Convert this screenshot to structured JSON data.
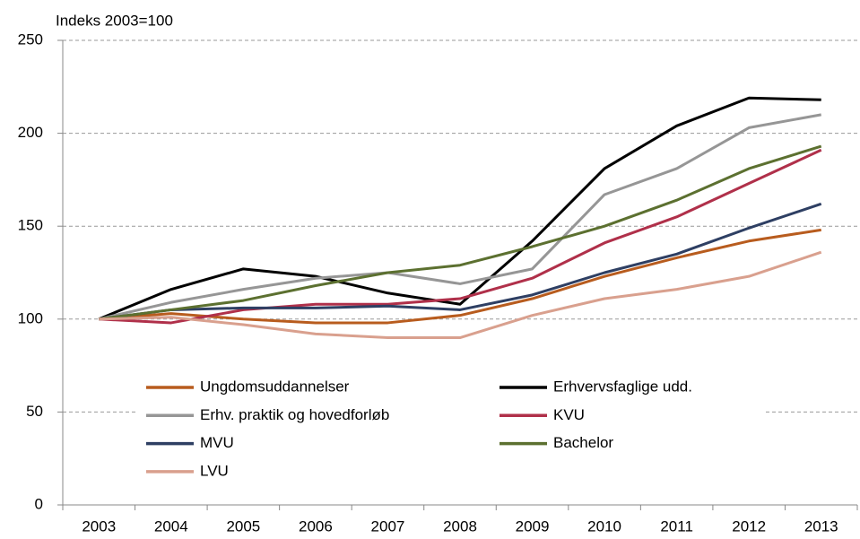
{
  "chart_data": {
    "type": "line",
    "y_label": "Indeks 2003=100",
    "categories": [
      "2003",
      "2004",
      "2005",
      "2006",
      "2007",
      "2008",
      "2009",
      "2010",
      "2011",
      "2012",
      "2013"
    ],
    "series": [
      {
        "name": "Ungdomsuddannelser",
        "color": "#b85c1e",
        "values": [
          100,
          103,
          100,
          98,
          98,
          102,
          111,
          123,
          133,
          142,
          148
        ]
      },
      {
        "name": "Erhvervsfaglige udd.",
        "color": "#000000",
        "values": [
          100,
          116,
          127,
          123,
          114,
          108,
          142,
          181,
          204,
          219,
          218
        ]
      },
      {
        "name": "Erhv. praktik og hovedforløb",
        "color": "#969696",
        "values": [
          100,
          109,
          116,
          122,
          125,
          119,
          127,
          167,
          181,
          203,
          210
        ]
      },
      {
        "name": "KVU",
        "color": "#b0304a",
        "values": [
          100,
          98,
          105,
          108,
          108,
          111,
          122,
          141,
          155,
          173,
          191
        ]
      },
      {
        "name": "MVU",
        "color": "#2e3f63",
        "values": [
          100,
          105,
          106,
          106,
          107,
          105,
          113,
          125,
          135,
          149,
          162
        ]
      },
      {
        "name": "Bachelor",
        "color": "#5c7030",
        "values": [
          100,
          105,
          110,
          118,
          125,
          129,
          139,
          150,
          164,
          181,
          193
        ]
      },
      {
        "name": "LVU",
        "color": "#d9a08e",
        "values": [
          100,
          101,
          97,
          92,
          90,
          90,
          102,
          111,
          116,
          123,
          136
        ]
      }
    ],
    "ylim": [
      0,
      250
    ],
    "yticks": [
      0,
      50,
      100,
      150,
      200,
      250
    ],
    "grid": true
  }
}
